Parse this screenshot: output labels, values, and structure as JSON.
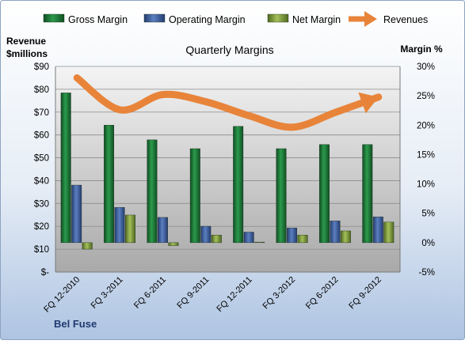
{
  "chart_data": {
    "type": "bar",
    "title": "Quarterly Margins",
    "company": "Bel Fuse",
    "left_axis_label": [
      "Revenue",
      "$millions"
    ],
    "right_axis_label": "Margin %",
    "left_ticks": [
      "$-",
      "$10",
      "$20",
      "$30",
      "$40",
      "$50",
      "$60",
      "$70",
      "$80",
      "$90"
    ],
    "right_ticks": [
      "-5%",
      "0%",
      "5%",
      "10%",
      "15%",
      "20%",
      "25%",
      "30%"
    ],
    "left_ylim": [
      0,
      90
    ],
    "right_ylim": [
      -5,
      30
    ],
    "categories": [
      "FQ 12-2010",
      "FQ 3-2011",
      "FQ 6-2011",
      "FQ 9-2011",
      "FQ 12-2011",
      "FQ 3-2012",
      "FQ 6-2012",
      "FQ 9-2012"
    ],
    "series": [
      {
        "name": "Gross Margin",
        "axis": "right",
        "color": "#1e7a3a",
        "values": [
          25.5,
          20.0,
          17.5,
          16.0,
          19.8,
          16.0,
          16.7,
          16.7
        ]
      },
      {
        "name": "Operating Margin",
        "axis": "right",
        "color": "#3d5fa0",
        "values": [
          9.8,
          6.0,
          4.3,
          2.8,
          1.8,
          2.5,
          3.7,
          4.4
        ]
      },
      {
        "name": "Net Margin",
        "axis": "right",
        "color": "#7e9e3c",
        "values": [
          -1.1,
          4.7,
          -0.5,
          1.3,
          0.1,
          1.3,
          2.0,
          3.5
        ]
      },
      {
        "name": "Revenues",
        "axis": "left",
        "type": "line",
        "color": "#e8843a",
        "values": [
          85.0,
          71.0,
          77.7,
          74.5,
          68.4,
          63.4,
          69.9,
          76.6
        ]
      }
    ],
    "legend_position": "top",
    "grid": true
  }
}
